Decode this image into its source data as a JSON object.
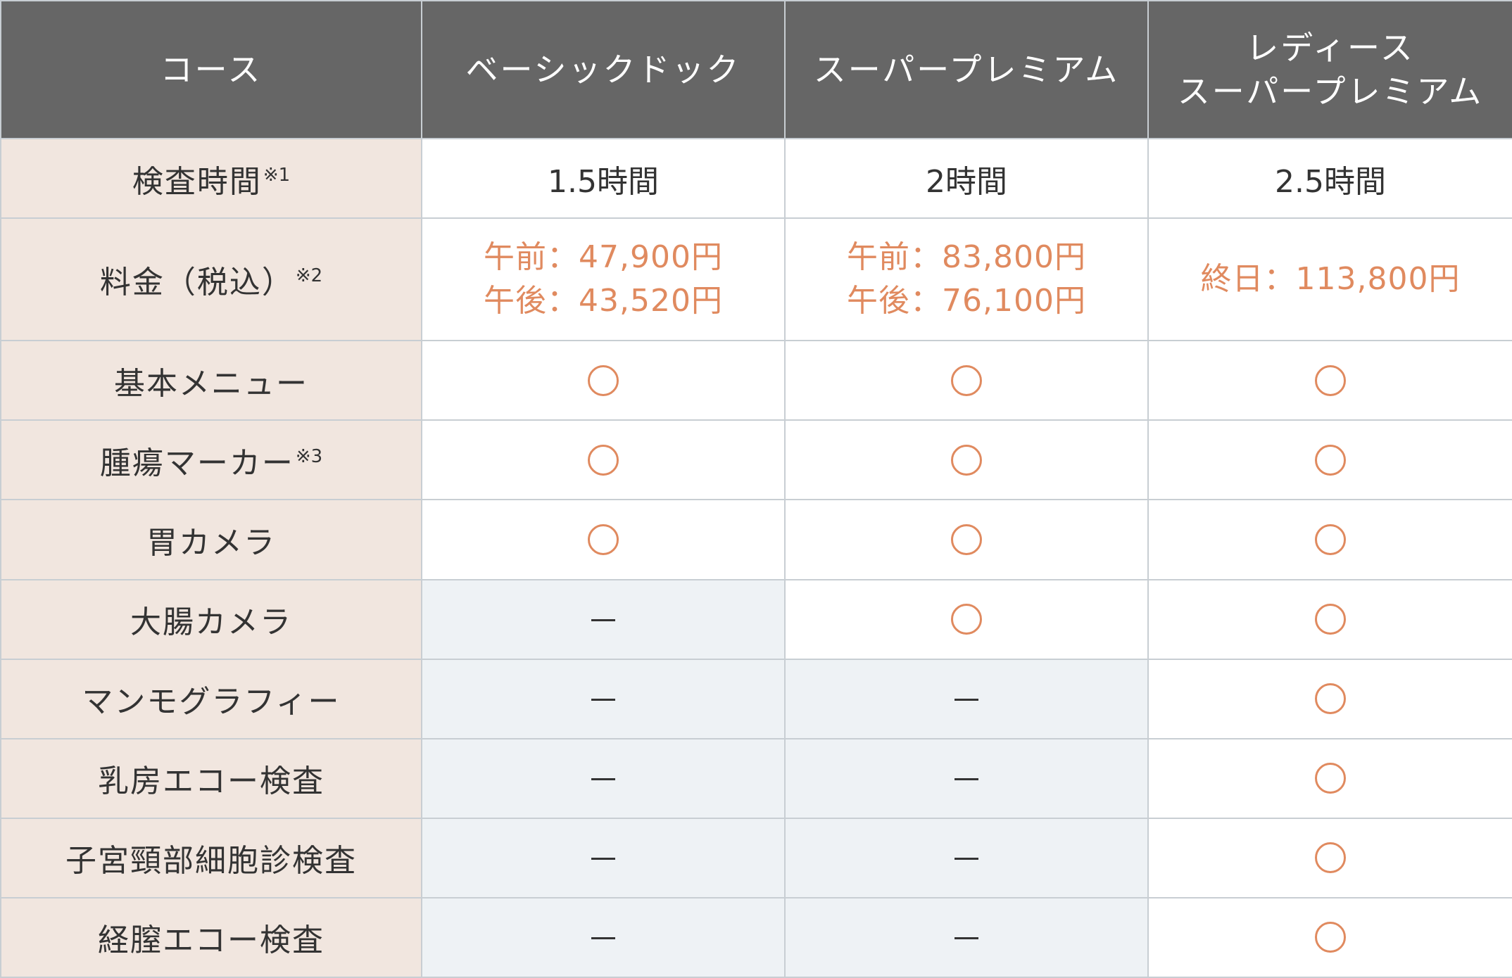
{
  "header": {
    "col0": "コース",
    "col1": "ベーシックドック",
    "col2": "スーパープレミアム",
    "col3_line1": "レディース",
    "col3_line2": "スーパープレミアム"
  },
  "time": {
    "label": "検査時間",
    "note": "※1",
    "basic": "1.5時間",
    "super": "2時間",
    "ladies": "2.5時間"
  },
  "price": {
    "label": "料金（税込）",
    "note": "※2",
    "basic_am": "午前：47,900円",
    "basic_pm": "午後：43,520円",
    "super_am": "午前：83,800円",
    "super_pm": "午後：76,100円",
    "ladies_all": "終日：113,800円"
  },
  "marks": {
    "yes_symbol": "circle-icon",
    "no_symbol": "dash-icon",
    "yes_color": "#e08a5f",
    "no_color": "#333333"
  },
  "rows": [
    {
      "label": "基本メニュー",
      "note": "",
      "basic": "yes",
      "super": "yes",
      "ladies": "yes"
    },
    {
      "label": "腫瘍マーカー",
      "note": "※3",
      "basic": "yes",
      "super": "yes",
      "ladies": "yes"
    },
    {
      "label": "胃カメラ",
      "note": "",
      "basic": "yes",
      "super": "yes",
      "ladies": "yes"
    },
    {
      "label": "大腸カメラ",
      "note": "",
      "basic": "no",
      "super": "yes",
      "ladies": "yes"
    },
    {
      "label": "マンモグラフィー",
      "note": "",
      "basic": "no",
      "super": "no",
      "ladies": "yes"
    },
    {
      "label": "乳房エコー検査",
      "note": "",
      "basic": "no",
      "super": "no",
      "ladies": "yes"
    },
    {
      "label": "子宮頸部細胞診検査",
      "note": "",
      "basic": "no",
      "super": "no",
      "ladies": "yes"
    },
    {
      "label": "経膣エコー検査",
      "note": "",
      "basic": "no",
      "super": "no",
      "ladies": "yes"
    }
  ],
  "colors": {
    "header_bg": "#666666",
    "label_bg": "#f1e6df",
    "unavailable_bg": "#eef2f5",
    "accent": "#e08a5f",
    "border": "#c8ced3"
  }
}
